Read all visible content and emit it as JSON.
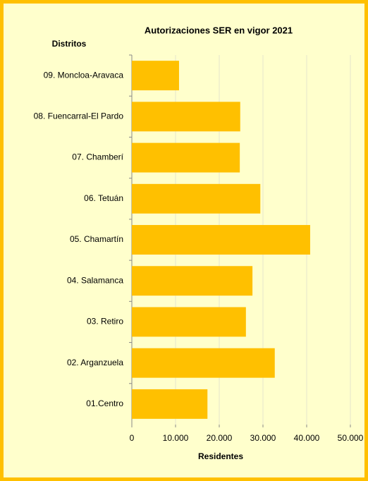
{
  "chart_data": {
    "type": "bar",
    "orientation": "horizontal",
    "title": "Autorizaciones SER en vigor 2021",
    "y_axis_label": "Distritos",
    "x_axis_label": "Residentes",
    "categories": [
      "09. Moncloa-Aravaca",
      "08. Fuencarral-El Pardo",
      "07. Chamberí",
      "06. Tetuán",
      "05. Chamartín",
      "04. Salamanca",
      "03. Retiro",
      "02. Arganzuela",
      "01.Centro"
    ],
    "values": [
      10800,
      24800,
      24700,
      29400,
      40800,
      27600,
      26100,
      32700,
      17300
    ],
    "color": "#ffc000",
    "xlim": [
      0,
      50000
    ],
    "xticks": [
      0,
      {
        "value": 10000,
        "label": "10.000"
      },
      {
        "value": 20000,
        "label": "20.000"
      },
      {
        "value": 30000,
        "label": "30.000"
      },
      {
        "value": 40000,
        "label": "40.000"
      },
      {
        "value": 50000,
        "label": "50.000"
      }
    ],
    "grid": true
  }
}
